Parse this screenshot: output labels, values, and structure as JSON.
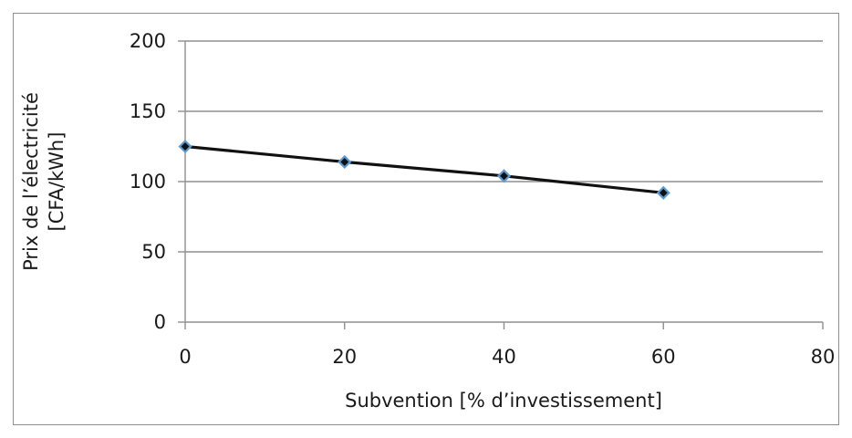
{
  "chart_data": {
    "type": "line",
    "title": "",
    "xlabel": "Subvention [% d’investissement]",
    "ylabel": [
      "Prix de l’électricité",
      "[CFA/kWh]"
    ],
    "xlim": [
      0,
      80
    ],
    "ylim": [
      0,
      200
    ],
    "x_ticks": [
      0,
      20,
      40,
      60,
      80
    ],
    "y_ticks": [
      0,
      50,
      100,
      150,
      200
    ],
    "grid": true,
    "legend": "none",
    "series": [
      {
        "x": [
          0,
          20,
          40,
          60
        ],
        "values": [
          125,
          114,
          104,
          92
        ],
        "line_color": "#111111",
        "marker_fill": "#111111",
        "marker_edge": "#5b9bd5",
        "marker": "diamond"
      }
    ],
    "colors": {
      "grid": "#8f8f8f",
      "axis": "#8f8f8f",
      "frame": "#8f8f8f",
      "text": "#1a1a1a"
    }
  }
}
